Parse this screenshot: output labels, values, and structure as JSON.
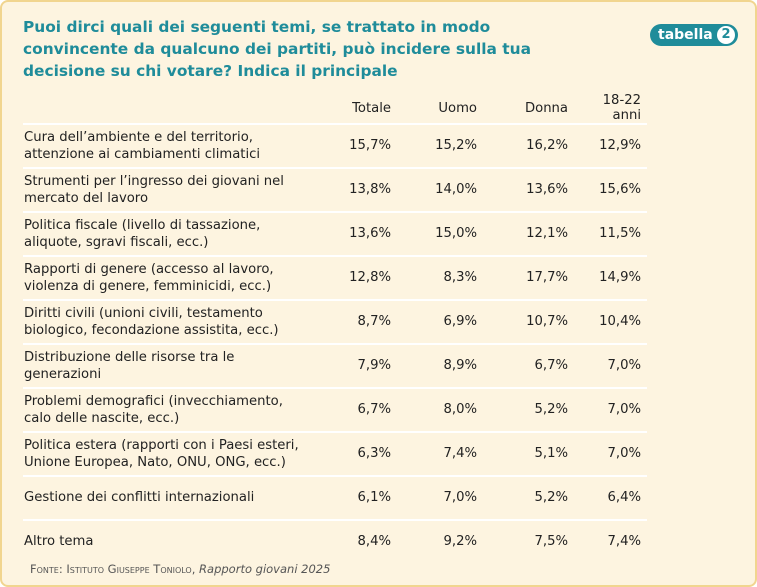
{
  "title": "Puoi dirci quali dei seguenti temi, se trattato in modo convincente da qualcuno dei partiti, può incidere sulla tua decisione su chi votare? Indica il principale",
  "badge": {
    "label": "tabella",
    "number": "2"
  },
  "table": {
    "headers": [
      "Totale",
      "Uomo",
      "Donna",
      "18-22 anni"
    ],
    "rows": [
      {
        "label": "Cura dell’ambiente e del territorio, attenzione ai cambiamenti climatici",
        "values": [
          "15,7%",
          "15,2%",
          "16,2%",
          "12,9%"
        ]
      },
      {
        "label": "Strumenti per l’ingresso dei giovani nel mercato del lavoro",
        "values": [
          "13,8%",
          "14,0%",
          "13,6%",
          "15,6%"
        ]
      },
      {
        "label": "Politica fiscale (livello di tassazione, aliquote, sgravi fiscali, ecc.)",
        "values": [
          "13,6%",
          "15,0%",
          "12,1%",
          "11,5%"
        ]
      },
      {
        "label": "Rapporti di genere (accesso al lavoro, violenza di genere, femminicidi, ecc.)",
        "values": [
          "12,8%",
          "8,3%",
          "17,7%",
          "14,9%"
        ]
      },
      {
        "label": "Diritti civili (unioni civili, testamento biologico, fecondazione assistita, ecc.)",
        "values": [
          "8,7%",
          "6,9%",
          "10,7%",
          "10,4%"
        ]
      },
      {
        "label": "Distribuzione delle risorse tra le generazioni",
        "values": [
          "7,9%",
          "8,9%",
          "6,7%",
          "7,0%"
        ]
      },
      {
        "label": "Problemi demografici (invecchiamento, calo delle nascite, ecc.)",
        "values": [
          "6,7%",
          "8,0%",
          "5,2%",
          "7,0%"
        ]
      },
      {
        "label": "Politica estera (rapporti con i Paesi esteri, Unione Europea, Nato, ONU, ONG, ecc.)",
        "values": [
          "6,3%",
          "7,4%",
          "5,1%",
          "7,0%"
        ]
      },
      {
        "label": "Gestione dei conflitti internazionali",
        "values": [
          "6,1%",
          "7,0%",
          "5,2%",
          "6,4%"
        ]
      },
      {
        "label": "Altro tema",
        "values": [
          "8,4%",
          "9,2%",
          "7,5%",
          "7,4%"
        ]
      }
    ]
  },
  "source": {
    "prefix": "Fonte:",
    "publisher": "Istituto Giuseppe Toniolo,",
    "title": "Rapporto giovani 2025"
  },
  "colors": {
    "accent": "#1f8c9a",
    "background": "#fdf4e0",
    "border": "#f1d58f"
  }
}
